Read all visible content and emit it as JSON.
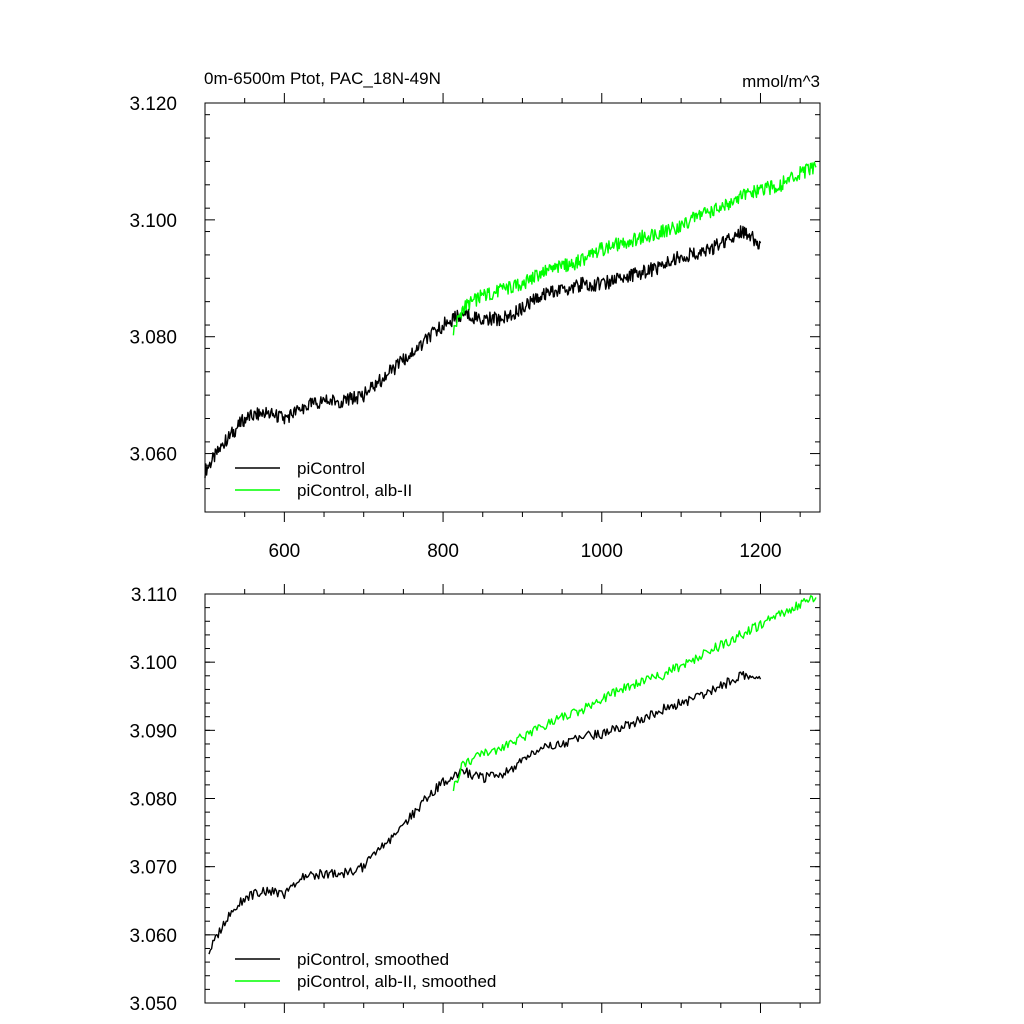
{
  "chart_data": [
    {
      "type": "line",
      "title": "0m-6500m Ptot, PAC_18N-49N",
      "units": "mmol/m^3",
      "xlim": [
        500,
        1275
      ],
      "ylim": [
        3.05,
        3.12
      ],
      "xticks": [
        600,
        800,
        1000,
        1200
      ],
      "xtick_labels": [
        "600",
        "800",
        "1000",
        "1200"
      ],
      "yticks": [
        3.06,
        3.08,
        3.1,
        3.12
      ],
      "ytick_labels": [
        "3.060",
        "3.080",
        "3.100",
        "3.120"
      ],
      "legend_position": "bottom-left",
      "series": [
        {
          "name": "piControl",
          "color": "#000000",
          "x": [
            500,
            525,
            550,
            575,
            600,
            625,
            650,
            675,
            700,
            725,
            750,
            775,
            800,
            825,
            850,
            875,
            900,
            925,
            950,
            975,
            1000,
            1025,
            1050,
            1075,
            1100,
            1125,
            1150,
            1175,
            1200
          ],
          "y": [
            3.057,
            3.062,
            3.066,
            3.067,
            3.066,
            3.068,
            3.069,
            3.069,
            3.07,
            3.073,
            3.076,
            3.079,
            3.082,
            3.084,
            3.083,
            3.083,
            3.085,
            3.087,
            3.088,
            3.089,
            3.089,
            3.09,
            3.091,
            3.092,
            3.094,
            3.094,
            3.096,
            3.098,
            3.096
          ]
        },
        {
          "name": "piControl, alb-II",
          "color": "#00ff00",
          "x": [
            813,
            825,
            850,
            875,
            900,
            925,
            950,
            975,
            1000,
            1025,
            1050,
            1075,
            1100,
            1125,
            1150,
            1175,
            1200,
            1225,
            1250,
            1270
          ],
          "y": [
            3.081,
            3.085,
            3.087,
            3.088,
            3.089,
            3.091,
            3.092,
            3.093,
            3.095,
            3.096,
            3.097,
            3.098,
            3.099,
            3.101,
            3.102,
            3.104,
            3.105,
            3.106,
            3.108,
            3.109
          ]
        }
      ]
    },
    {
      "type": "line",
      "xlim": [
        500,
        1275
      ],
      "ylim": [
        3.05,
        3.11
      ],
      "xticks": [
        600,
        800,
        1000,
        1200
      ],
      "yticks": [
        3.05,
        3.06,
        3.07,
        3.08,
        3.09,
        3.1,
        3.11
      ],
      "ytick_labels": [
        "3.050",
        "3.060",
        "3.070",
        "3.080",
        "3.090",
        "3.100",
        "3.110"
      ],
      "legend_position": "bottom-left",
      "series": [
        {
          "name": "piControl, smoothed",
          "color": "#000000",
          "x": [
            505,
            525,
            550,
            575,
            600,
            625,
            650,
            675,
            700,
            725,
            750,
            775,
            800,
            825,
            850,
            875,
            900,
            925,
            950,
            975,
            1000,
            1025,
            1050,
            1075,
            1100,
            1125,
            1150,
            1175,
            1200
          ],
          "y": [
            3.0575,
            3.062,
            3.0655,
            3.0665,
            3.066,
            3.0685,
            3.069,
            3.069,
            3.07,
            3.073,
            3.076,
            3.0795,
            3.0825,
            3.084,
            3.083,
            3.0835,
            3.0855,
            3.0875,
            3.088,
            3.089,
            3.0895,
            3.0905,
            3.0915,
            3.093,
            3.094,
            3.095,
            3.0965,
            3.098,
            3.0975
          ]
        },
        {
          "name": "piControl, alb-II, smoothed",
          "color": "#00ff00",
          "x": [
            813,
            825,
            850,
            875,
            900,
            925,
            950,
            975,
            1000,
            1025,
            1050,
            1075,
            1100,
            1125,
            1150,
            1175,
            1200,
            1225,
            1250,
            1270
          ],
          "y": [
            3.0815,
            3.085,
            3.0865,
            3.0875,
            3.089,
            3.0905,
            3.092,
            3.093,
            3.0945,
            3.096,
            3.097,
            3.098,
            3.0995,
            3.101,
            3.1025,
            3.104,
            3.1055,
            3.107,
            3.1085,
            3.1095
          ]
        }
      ]
    }
  ]
}
